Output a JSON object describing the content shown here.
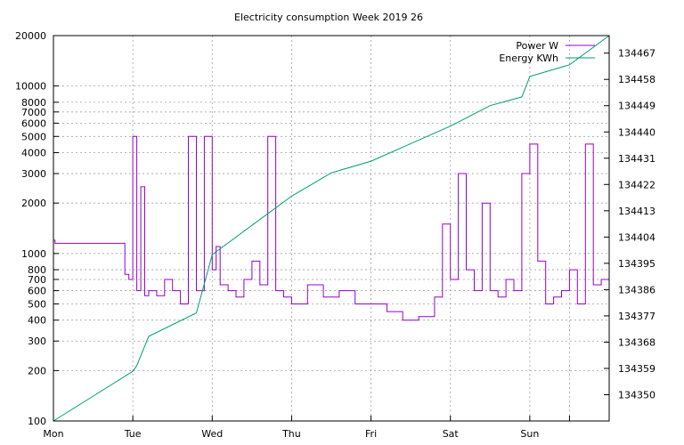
{
  "chart_data": {
    "type": "line",
    "title": "Electricity consumption Week 2019 26",
    "xlabel": "",
    "ylabel": "",
    "x_categories": [
      "Mon",
      "Tue",
      "Wed",
      "Thu",
      "Fri",
      "Sat",
      "Sun"
    ],
    "x_range_days": [
      0,
      7
    ],
    "y_left": {
      "scale": "log",
      "range": [
        100,
        20000
      ],
      "ticks": [
        100,
        200,
        300,
        400,
        500,
        600,
        700,
        800,
        1000,
        2000,
        3000,
        4000,
        5000,
        6000,
        7000,
        8000,
        10000,
        20000
      ],
      "tick_labels": [
        "100",
        "200",
        "300",
        "400",
        "500",
        "600",
        "700",
        "800",
        "1000",
        "2000",
        "3000",
        "4000",
        "5000",
        "6000",
        "7000",
        "8000",
        "10000",
        "20000"
      ]
    },
    "y_right": {
      "scale": "linear",
      "range": [
        134341,
        134473
      ],
      "ticks": [
        134350,
        134359,
        134368,
        134377,
        134386,
        134395,
        134404,
        134413,
        134422,
        134431,
        134440,
        134449,
        134458,
        134467
      ],
      "tick_labels": [
        "134350",
        "134359",
        "134368",
        "134377",
        "134386",
        "134395",
        "134404",
        "134413",
        "134422",
        "134431",
        "134440",
        "134449",
        "134458",
        "134467"
      ]
    },
    "grid": true,
    "legend_position": "top-right",
    "series": [
      {
        "name": "Power W",
        "axis": "left",
        "color": "#9400d3",
        "x_day": [
          0,
          0.02,
          0.85,
          0.9,
          0.95,
          1.0,
          1.05,
          1.1,
          1.15,
          1.2,
          1.3,
          1.4,
          1.5,
          1.6,
          1.7,
          1.8,
          1.9,
          2.0,
          2.05,
          2.1,
          2.2,
          2.3,
          2.4,
          2.5,
          2.6,
          2.7,
          2.8,
          2.9,
          3.0,
          3.2,
          3.4,
          3.6,
          3.8,
          4.0,
          4.2,
          4.4,
          4.6,
          4.8,
          4.9,
          5.0,
          5.1,
          5.2,
          5.3,
          5.4,
          5.5,
          5.6,
          5.7,
          5.8,
          5.9,
          6.0,
          6.1,
          6.2,
          6.3,
          6.4,
          6.5,
          6.6,
          6.7,
          6.8,
          6.9,
          7.0
        ],
        "y": [
          1200,
          1150,
          1150,
          750,
          700,
          5000,
          600,
          2500,
          560,
          600,
          560,
          700,
          600,
          500,
          5000,
          600,
          5000,
          800,
          1100,
          650,
          600,
          550,
          700,
          900,
          650,
          5000,
          600,
          550,
          500,
          650,
          550,
          600,
          500,
          500,
          450,
          400,
          420,
          550,
          1500,
          700,
          3000,
          800,
          600,
          2000,
          600,
          550,
          700,
          600,
          3000,
          4500,
          900,
          500,
          550,
          600,
          800,
          500,
          4500,
          650,
          700,
          900
        ]
      },
      {
        "name": "Energy KWh",
        "axis": "right",
        "color": "#009e73",
        "x_day": [
          0,
          1.0,
          1.05,
          1.2,
          1.8,
          2.0,
          2.5,
          3.0,
          3.5,
          4.0,
          4.5,
          5.0,
          5.5,
          5.9,
          6.0,
          6.5,
          7.0
        ],
        "y": [
          134341,
          134358,
          134360,
          134370,
          134378,
          134398,
          134408,
          134418,
          134426,
          134430,
          134436,
          134442,
          134449,
          134452,
          134459,
          134463,
          134473
        ]
      }
    ]
  }
}
